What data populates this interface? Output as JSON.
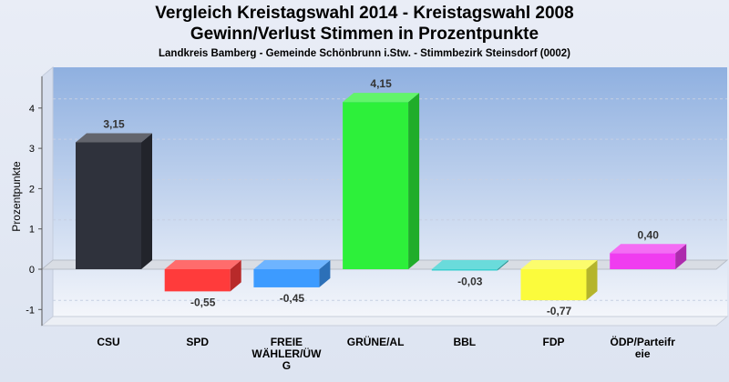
{
  "chart_data": {
    "type": "bar",
    "title": "Vergleich Kreistagswahl 2014 - Kreistagswahl 2008",
    "subtitle": "Gewinn/Verlust Stimmen in Prozentpunkte",
    "subsubtitle": "Landkreis Bamberg - Gemeinde Schönbrunn i.Stw. - Stimmbezirk Steinsdorf (0002)",
    "ylabel": "Prozentpunkte",
    "xlabel": "",
    "ylim": [
      -1.5,
      4.75
    ],
    "yticks": [
      "-1",
      "0",
      "1",
      "2",
      "3",
      "4"
    ],
    "categories": [
      [
        "CSU"
      ],
      [
        "SPD"
      ],
      [
        "FREIE",
        "WÄHLER/ÜW",
        "G"
      ],
      [
        "GRÜNE/AL"
      ],
      [
        "BBL"
      ],
      [
        "FDP"
      ],
      [
        "ÖDP/Parteifr",
        "eie"
      ]
    ],
    "values": [
      3.15,
      -0.55,
      -0.45,
      4.15,
      -0.03,
      -0.77,
      0.4
    ],
    "value_labels": [
      "3,15",
      "-0,55",
      "-0,45",
      "4,15",
      "-0,03",
      "-0,77",
      "0,40"
    ],
    "colors": [
      "#2f323c",
      "#ff3b3b",
      "#3d9bff",
      "#2df03a",
      "#38cfcf",
      "#fbfb3c",
      "#f03cf0"
    ],
    "grid": true
  }
}
